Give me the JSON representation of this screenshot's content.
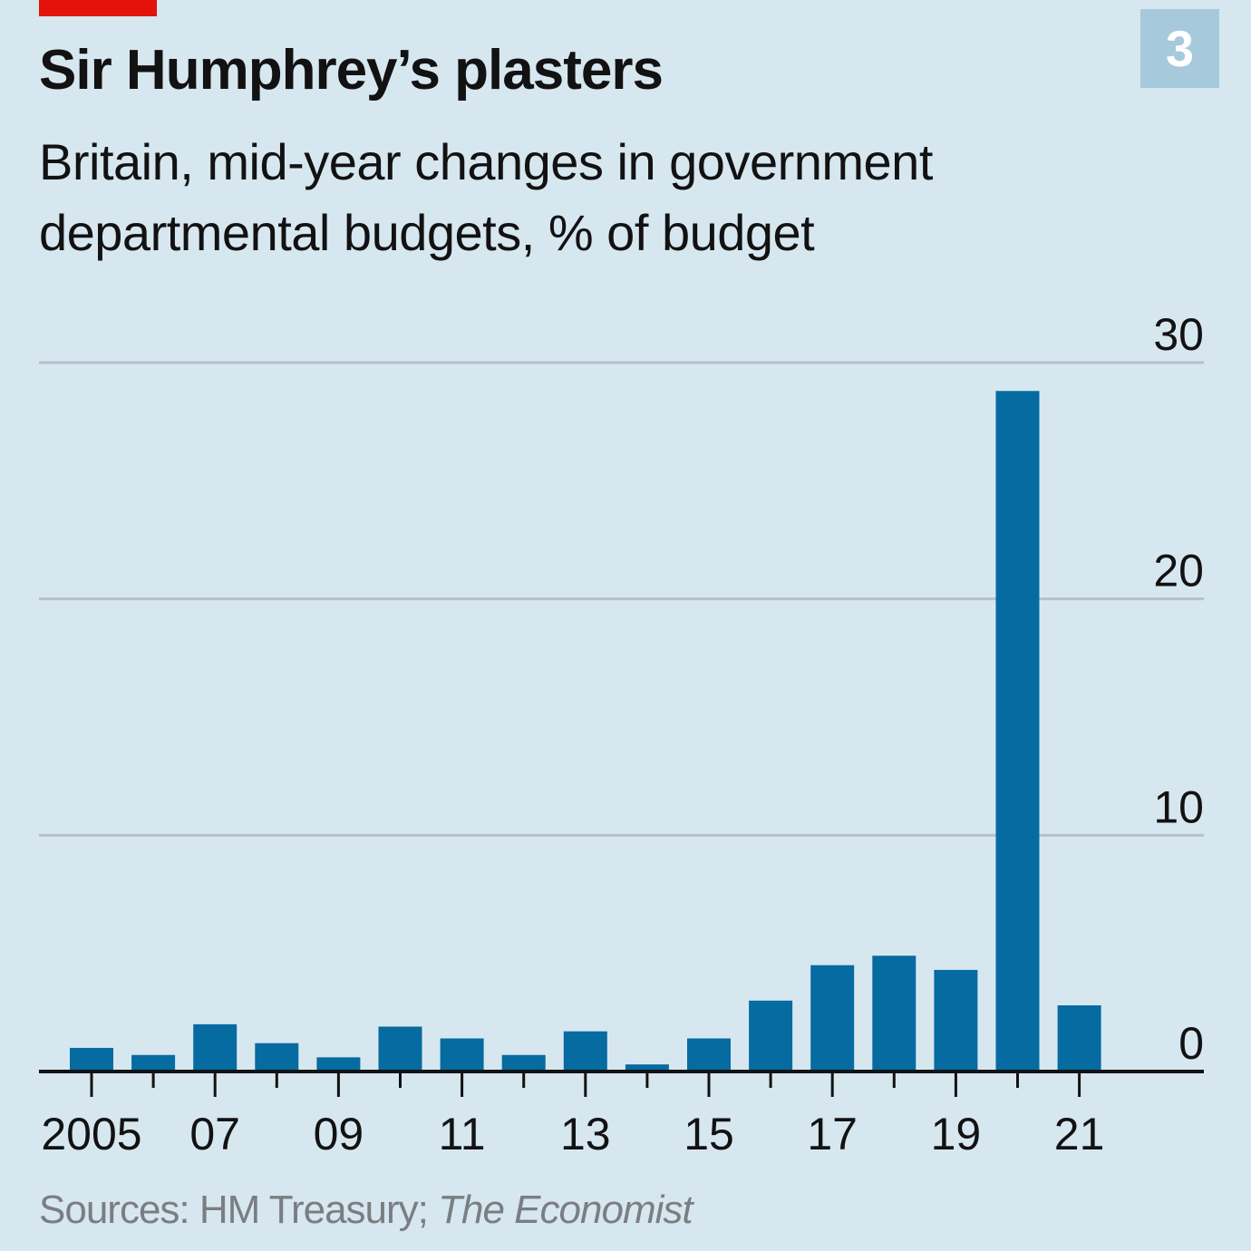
{
  "header": {
    "title": "Sir Humphrey’s plasters",
    "subtitle": "Britain, mid-year changes in government departmental budgets, % of budget",
    "chart_number": "3"
  },
  "footer": {
    "source_prefix": "Sources: HM Treasury; ",
    "source_italic": "The Economist"
  },
  "colors": {
    "background": "#d7e7f0",
    "bar": "#066ba1",
    "accent_red": "#e3120b",
    "badge": "#a6c9dc",
    "gridline": "#b3c2cc"
  },
  "chart_data": {
    "type": "bar",
    "title": "Sir Humphrey’s plasters",
    "subtitle": "Britain, mid-year changes in government departmental budgets, % of budget",
    "xlabel": "",
    "ylabel": "% of budget",
    "ylim": [
      0,
      30
    ],
    "yticks": [
      0,
      10,
      20,
      30
    ],
    "ytick_labels": [
      "0",
      "10",
      "20",
      "30"
    ],
    "y_axis_side": "right",
    "grid": true,
    "categories": [
      "2005",
      "2006",
      "2007",
      "2008",
      "2009",
      "2010",
      "2011",
      "2012",
      "2013",
      "2014",
      "2015",
      "2016",
      "2017",
      "2018",
      "2019",
      "2020",
      "2021"
    ],
    "xtick_labels": [
      {
        "category": "2005",
        "label": "2005"
      },
      {
        "category": "2007",
        "label": "07"
      },
      {
        "category": "2009",
        "label": "09"
      },
      {
        "category": "2011",
        "label": "11"
      },
      {
        "category": "2013",
        "label": "13"
      },
      {
        "category": "2015",
        "label": "15"
      },
      {
        "category": "2017",
        "label": "17"
      },
      {
        "category": "2019",
        "label": "19"
      },
      {
        "category": "2021",
        "label": "21"
      }
    ],
    "values": [
      1.0,
      0.7,
      2.0,
      1.2,
      0.6,
      1.9,
      1.4,
      0.7,
      1.7,
      0.3,
      1.4,
      3.0,
      4.5,
      4.9,
      4.3,
      28.8,
      2.8
    ]
  }
}
